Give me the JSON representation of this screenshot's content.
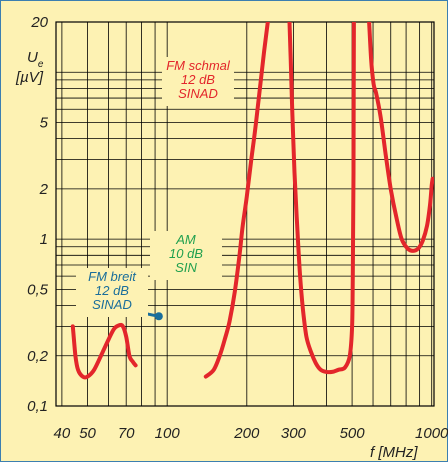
{
  "chart_data": {
    "type": "line",
    "title": "",
    "xlabel": "f [MHz]",
    "ylabel_line1": "U",
    "ylabel_sub": "e",
    "ylabel_line2": "[µV]",
    "x_scale": "log",
    "y_scale": "log",
    "xlim": [
      38,
      1020
    ],
    "ylim": [
      0.1,
      20
    ],
    "x_ticks": [
      {
        "value": 40,
        "label": "40"
      },
      {
        "value": 50,
        "label": "50"
      },
      {
        "value": 70,
        "label": "70"
      },
      {
        "value": 100,
        "label": "100"
      },
      {
        "value": 200,
        "label": "200"
      },
      {
        "value": 300,
        "label": "300"
      },
      {
        "value": 500,
        "label": "500"
      },
      {
        "value": 1000,
        "label": "1000"
      }
    ],
    "y_ticks": [
      {
        "value": 0.1,
        "label": "0,1"
      },
      {
        "value": 0.2,
        "label": "0,2"
      },
      {
        "value": 0.5,
        "label": "0,5"
      },
      {
        "value": 1,
        "label": "1"
      },
      {
        "value": 2,
        "label": "2"
      },
      {
        "value": 5,
        "label": "5"
      },
      {
        "value": 20,
        "label": "20"
      }
    ],
    "grid": true,
    "colors": {
      "background": "#fdf2b3",
      "grid": "#000000",
      "frame": "#3c7fb0",
      "fm_schmal": "#e3262b",
      "fm_breit": "#1a6e9b",
      "am": "#21a04f"
    },
    "series": [
      {
        "name_lines": [
          "FM schmal",
          "12 dB",
          "SINAD"
        ],
        "color": "#e3262b",
        "segments": [
          [
            [
              44,
              0.3
            ],
            [
              45,
              0.2
            ],
            [
              46,
              0.165
            ],
            [
              48,
              0.15
            ],
            [
              50,
              0.15
            ],
            [
              53,
              0.165
            ],
            [
              57,
              0.21
            ],
            [
              60,
              0.25
            ],
            [
              63,
              0.29
            ],
            [
              66,
              0.305
            ],
            [
              68,
              0.3
            ],
            [
              70,
              0.26
            ],
            [
              72,
              0.2
            ],
            [
              74,
              0.185
            ],
            [
              76,
              0.175
            ]
          ],
          [
            [
              140,
              0.15
            ],
            [
              150,
              0.165
            ],
            [
              158,
              0.2
            ],
            [
              165,
              0.25
            ],
            [
              172,
              0.32
            ],
            [
              180,
              0.48
            ],
            [
              188,
              0.82
            ],
            [
              193,
              1.2
            ],
            [
              200,
              1.8
            ],
            [
              208,
              3.0
            ],
            [
              215,
              4.5
            ],
            [
              222,
              7.0
            ],
            [
              232,
              13
            ],
            [
              240,
              20
            ]
          ],
          [
            [
              290,
              20
            ],
            [
              293,
              12
            ],
            [
              297,
              6.0
            ],
            [
              303,
              2.5
            ],
            [
              310,
              1.2
            ],
            [
              318,
              0.6
            ],
            [
              326,
              0.38
            ],
            [
              336,
              0.26
            ],
            [
              350,
              0.21
            ],
            [
              365,
              0.18
            ],
            [
              380,
              0.165
            ],
            [
              400,
              0.16
            ],
            [
              420,
              0.16
            ],
            [
              445,
              0.165
            ],
            [
              470,
              0.17
            ],
            [
              490,
              0.2
            ],
            [
              500,
              0.3
            ],
            [
              503,
              0.6
            ],
            [
              506,
              2.5
            ],
            [
              508,
              20
            ]
          ],
          [
            [
              580,
              20
            ],
            [
              590,
              12
            ],
            [
              603,
              8.5
            ],
            [
              616,
              7.5
            ],
            [
              640,
              5.5
            ],
            [
              670,
              3.2
            ],
            [
              700,
              2.0
            ],
            [
              735,
              1.35
            ],
            [
              770,
              1.0
            ],
            [
              810,
              0.88
            ],
            [
              850,
              0.85
            ],
            [
              890,
              0.88
            ],
            [
              925,
              0.98
            ],
            [
              960,
              1.2
            ],
            [
              985,
              1.6
            ],
            [
              1000,
              2.1
            ],
            [
              1008,
              2.3
            ]
          ]
        ]
      },
      {
        "name_lines": [
          "FM breit",
          "12 dB",
          "SINAD"
        ],
        "color": "#1a6e9b",
        "segments": [
          [
            [
              78,
              0.37
            ],
            [
              85,
              0.355
            ],
            [
              93,
              0.345
            ]
          ]
        ]
      },
      {
        "name_lines": [
          "AM",
          "10 dB",
          "SIN"
        ],
        "color": "#21a04f",
        "segments": [
          [
            [
              94,
              0.64
            ],
            [
              101,
              0.64
            ],
            [
              109,
              0.64
            ]
          ]
        ]
      }
    ]
  }
}
